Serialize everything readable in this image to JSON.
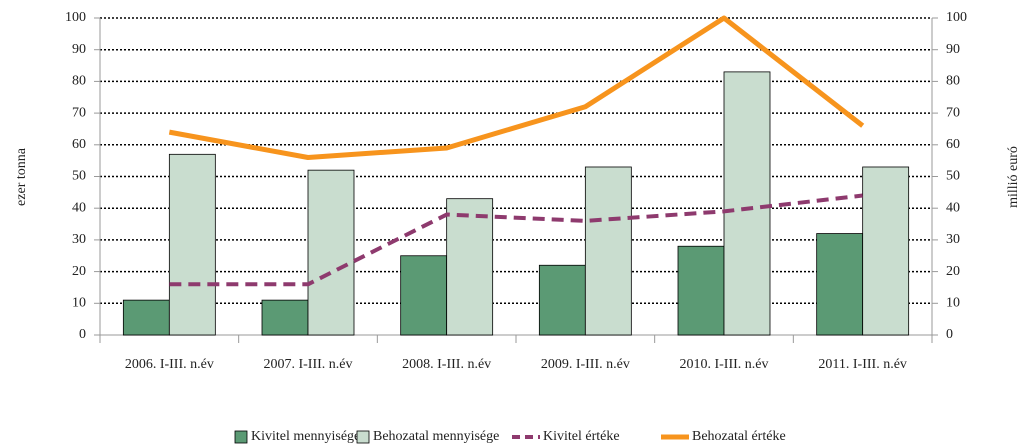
{
  "chart_data": {
    "type": "bar",
    "categories": [
      "2006. I-III. n.év",
      "2007. I-III. n.év",
      "2008. I-III. n.év",
      "2009. I-III. n.év",
      "2010. I-III. n.év",
      "2011. I-III. n.év"
    ],
    "series": [
      {
        "name": "Kivitel mennyisége",
        "type": "bar",
        "color": "#5b9a74",
        "values": [
          11,
          11,
          25,
          22,
          28,
          32
        ]
      },
      {
        "name": "Behozatal mennyisége",
        "type": "bar",
        "color": "#c9ddcf",
        "values": [
          57,
          52,
          43,
          53,
          83,
          53
        ]
      },
      {
        "name": "Kivitel értéke",
        "type": "line",
        "dashed": true,
        "axis": "y2",
        "color": "#8e3a6e",
        "values": [
          16,
          16,
          38,
          36,
          39,
          44
        ]
      },
      {
        "name": "Behozatal értéke",
        "type": "line",
        "axis": "y2",
        "color": "#f7941d",
        "values": [
          64,
          56,
          59,
          72,
          100,
          66
        ]
      }
    ],
    "ylabel": "ezer tonna",
    "y2label": "millió euró",
    "ylim": [
      0,
      100
    ],
    "yticks": [
      0,
      10,
      20,
      30,
      40,
      50,
      60,
      70,
      80,
      90,
      100
    ],
    "y2lim": [
      0,
      100
    ],
    "y2ticks": [
      0,
      10,
      20,
      30,
      40,
      50,
      60,
      70,
      80,
      90,
      100
    ],
    "grid": true,
    "legend": "bottom"
  }
}
